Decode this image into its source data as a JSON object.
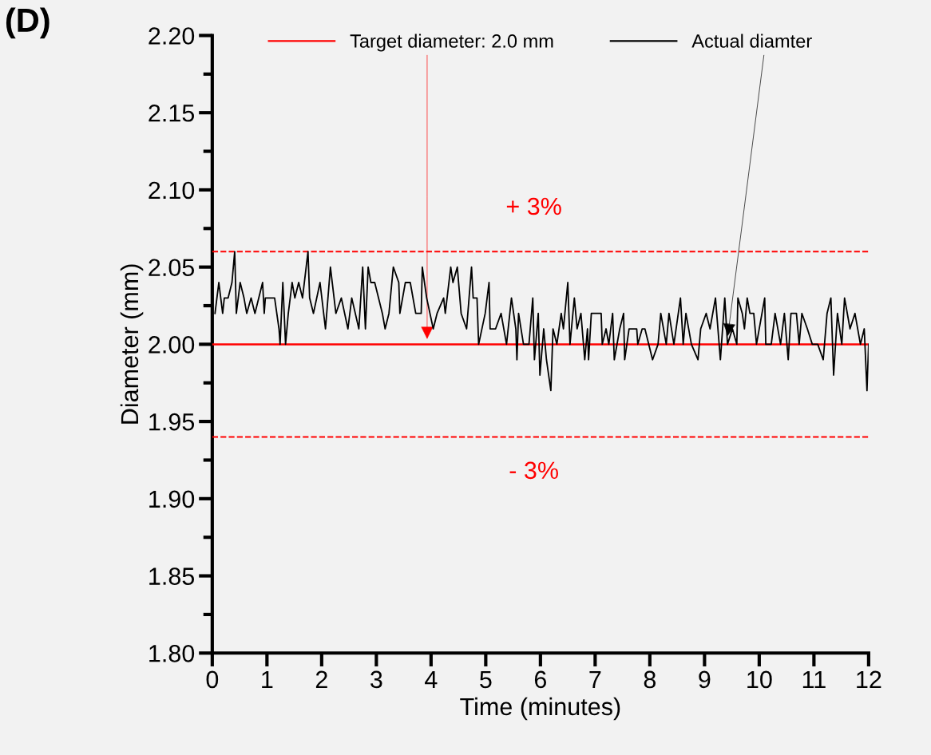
{
  "chart_data": {
    "type": "line",
    "xlabel": "Time (minutes)",
    "ylabel": "Diameter (mm)",
    "annotations": [
      "(D)",
      "+ 3%",
      "- 3%"
    ],
    "xlim": [
      0,
      12
    ],
    "xticks": [
      0,
      1,
      2,
      3,
      4,
      5,
      6,
      7,
      8,
      9,
      10,
      11,
      12
    ],
    "ylim": [
      1.8,
      2.2
    ],
    "yticks": [
      {
        "value": 1.8,
        "label": "1.80"
      },
      {
        "value": 1.85,
        "label": "1.85"
      },
      {
        "value": 1.9,
        "label": "1.90"
      },
      {
        "value": 1.95,
        "label": "1.95"
      },
      {
        "value": 2.0,
        "label": "2.00"
      },
      {
        "value": 2.05,
        "label": "2.05"
      },
      {
        "value": 2.1,
        "label": "2.10"
      },
      {
        "value": 2.15,
        "label": "2.15"
      },
      {
        "value": 2.2,
        "label": "2.20"
      }
    ],
    "grid": false,
    "legend": "top",
    "line_style": "solid",
    "marker": "none",
    "ref_lines": [
      {
        "axis": "y",
        "value": 2.0,
        "label": "Target diameter: 2.0 mm",
        "color": "#ff0000",
        "line_style": "solid"
      },
      {
        "axis": "y",
        "value": 2.06,
        "color": "#ff0000",
        "line_style": "dashed"
      },
      {
        "axis": "y",
        "value": 1.94,
        "color": "#ff0000",
        "line_style": "dashed"
      }
    ],
    "series": [
      {
        "name": "Actual diamter",
        "color": "#000000",
        "x": [
          0.05,
          0.12,
          0.19,
          0.22,
          0.29,
          0.36,
          0.41,
          0.44,
          0.51,
          0.58,
          0.63,
          0.71,
          0.78,
          0.92,
          0.95,
          0.97,
          1.14,
          1.22,
          1.24,
          1.29,
          1.34,
          1.39,
          1.46,
          1.51,
          1.58,
          1.65,
          1.75,
          1.78,
          1.85,
          1.97,
          2.07,
          2.16,
          2.26,
          2.36,
          2.48,
          2.55,
          2.68,
          2.75,
          2.8,
          2.85,
          2.9,
          2.97,
          3.11,
          3.16,
          3.23,
          3.31,
          3.41,
          3.43,
          3.53,
          3.62,
          3.72,
          3.82,
          3.84,
          3.92,
          4.04,
          4.11,
          4.23,
          4.26,
          4.36,
          4.4,
          4.48,
          4.55,
          4.65,
          4.74,
          4.77,
          4.84,
          4.87,
          4.99,
          5.06,
          5.08,
          5.18,
          5.28,
          5.38,
          5.47,
          5.55,
          5.57,
          5.6,
          5.69,
          5.79,
          5.86,
          5.89,
          5.96,
          5.99,
          6.06,
          6.11,
          6.19,
          6.23,
          6.3,
          6.38,
          6.42,
          6.5,
          6.54,
          6.62,
          6.67,
          6.74,
          6.81,
          6.86,
          6.88,
          6.93,
          7.03,
          7.11,
          7.13,
          7.2,
          7.25,
          7.32,
          7.35,
          7.45,
          7.52,
          7.54,
          7.62,
          7.76,
          7.78,
          7.86,
          7.91,
          8.05,
          8.15,
          8.2,
          8.3,
          8.35,
          8.44,
          8.56,
          8.61,
          8.66,
          8.76,
          8.88,
          8.93,
          9.03,
          9.1,
          9.2,
          9.29,
          9.37,
          9.42,
          9.51,
          9.59,
          9.61,
          9.69,
          9.73,
          9.78,
          9.83,
          9.9,
          9.95,
          10.1,
          10.12,
          10.22,
          10.29,
          10.39,
          10.46,
          10.53,
          10.58,
          10.68,
          10.73,
          10.78,
          10.88,
          10.97,
          11.07,
          11.17,
          11.24,
          11.31,
          11.36,
          11.43,
          11.51,
          11.56,
          11.66,
          11.75,
          11.85,
          11.92,
          11.97,
          12.0
        ],
        "values": [
          2.02,
          2.04,
          2.02,
          2.03,
          2.03,
          2.04,
          2.06,
          2.02,
          2.04,
          2.03,
          2.02,
          2.03,
          2.02,
          2.04,
          2.02,
          2.03,
          2.03,
          2.01,
          2.0,
          2.04,
          2.0,
          2.02,
          2.04,
          2.03,
          2.04,
          2.03,
          2.06,
          2.03,
          2.02,
          2.04,
          2.01,
          2.05,
          2.02,
          2.03,
          2.01,
          2.03,
          2.01,
          2.05,
          2.01,
          2.05,
          2.04,
          2.04,
          2.02,
          2.01,
          2.02,
          2.05,
          2.04,
          2.02,
          2.04,
          2.04,
          2.02,
          2.02,
          2.05,
          2.03,
          2.01,
          2.02,
          2.03,
          2.02,
          2.05,
          2.04,
          2.05,
          2.02,
          2.01,
          2.05,
          2.03,
          2.03,
          2.0,
          2.02,
          2.04,
          2.01,
          2.01,
          2.02,
          2.0,
          2.03,
          2.01,
          1.99,
          2.02,
          2.0,
          2.0,
          2.03,
          1.99,
          2.02,
          1.98,
          2.01,
          1.99,
          1.97,
          2.01,
          2.0,
          2.02,
          2.01,
          2.04,
          2.0,
          2.03,
          2.01,
          2.02,
          1.99,
          2.01,
          1.99,
          2.02,
          2.02,
          2.02,
          2.0,
          2.01,
          2.0,
          2.02,
          1.99,
          2.01,
          2.02,
          1.99,
          2.01,
          2.01,
          2.0,
          2.01,
          2.01,
          1.99,
          2.0,
          2.02,
          2.0,
          2.02,
          2.0,
          2.03,
          2.0,
          2.02,
          2.0,
          1.99,
          2.01,
          2.02,
          2.01,
          2.03,
          1.99,
          2.03,
          2.0,
          2.01,
          2.0,
          2.03,
          2.02,
          2.01,
          2.03,
          2.02,
          2.02,
          2.0,
          2.03,
          2.0,
          2.0,
          2.02,
          2.0,
          2.02,
          1.99,
          2.02,
          2.02,
          2.0,
          2.02,
          2.01,
          2.0,
          2.0,
          1.99,
          2.02,
          2.03,
          1.98,
          2.02,
          2.0,
          2.03,
          2.01,
          2.02,
          2.0,
          2.01,
          1.97,
          2.0
        ]
      }
    ]
  }
}
